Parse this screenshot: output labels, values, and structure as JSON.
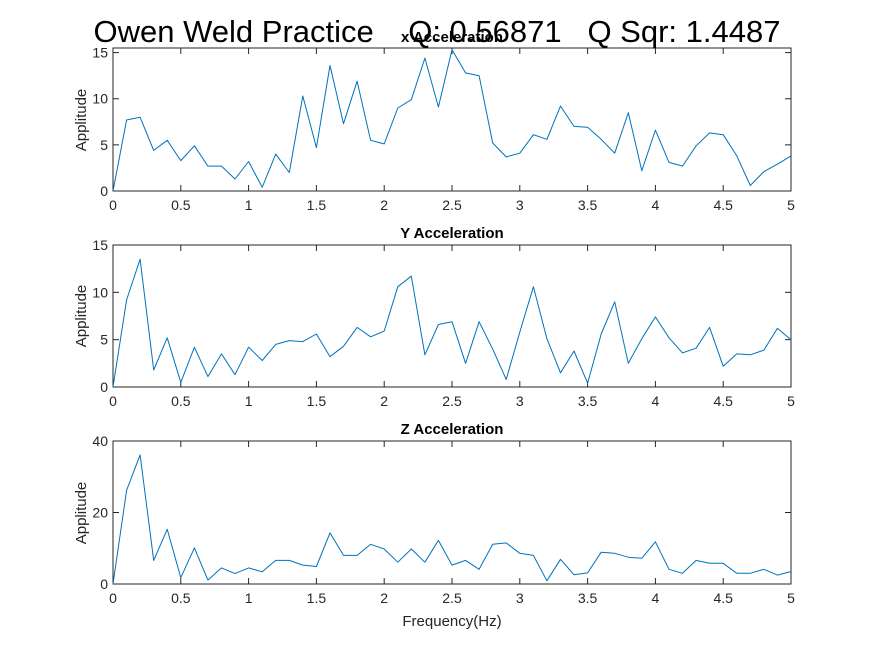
{
  "figure_title": "Owen Weld Practice    Q: 0.56871   Q Sqr: 1.4487",
  "colors": {
    "line": "#0072BD",
    "axis": "#262626",
    "background": "#ffffff"
  },
  "chart_data": [
    {
      "type": "line",
      "title": "x Acceleration",
      "xlabel": "",
      "ylabel": "Applitude",
      "xlim": [
        0,
        5
      ],
      "ylim": [
        0,
        15.5
      ],
      "xticks": [
        0,
        0.5,
        1,
        1.5,
        2,
        2.5,
        3,
        3.5,
        4,
        4.5,
        5
      ],
      "xtick_labels": [
        "0",
        "0.5",
        "1",
        "1.5",
        "2",
        "2.5",
        "3",
        "3.5",
        "4",
        "4.5",
        "5"
      ],
      "yticks": [
        0,
        5,
        10,
        15
      ],
      "ytick_labels": [
        "0",
        "5",
        "10",
        "15"
      ],
      "grid": false,
      "x": [
        0,
        0.1,
        0.2,
        0.3,
        0.4,
        0.5,
        0.6,
        0.7,
        0.8,
        0.9,
        1.0,
        1.1,
        1.2,
        1.3,
        1.4,
        1.5,
        1.6,
        1.7,
        1.8,
        1.9,
        2.0,
        2.1,
        2.2,
        2.3,
        2.4,
        2.5,
        2.6,
        2.7,
        2.8,
        2.9,
        3.0,
        3.1,
        3.2,
        3.3,
        3.4,
        3.5,
        3.6,
        3.7,
        3.8,
        3.9,
        4.0,
        4.1,
        4.2,
        4.3,
        4.4,
        4.5,
        4.6,
        4.7,
        4.8,
        4.9,
        5.0
      ],
      "values": [
        0,
        7.7,
        8.0,
        4.4,
        5.5,
        3.3,
        4.9,
        2.7,
        2.7,
        1.3,
        3.2,
        0.4,
        4.0,
        2.0,
        10.3,
        4.7,
        13.6,
        7.3,
        11.9,
        5.5,
        5.1,
        9.0,
        9.9,
        14.4,
        9.1,
        15.3,
        12.8,
        12.5,
        5.2,
        3.7,
        4.1,
        6.1,
        5.6,
        9.2,
        7.0,
        6.9,
        5.6,
        4.1,
        8.5,
        2.2,
        6.6,
        3.1,
        2.7,
        4.9,
        6.3,
        6.1,
        3.8,
        0.6,
        2.1,
        2.9,
        3.8
      ]
    },
    {
      "type": "line",
      "title": "Y Acceleration",
      "xlabel": "",
      "ylabel": "Applitude",
      "xlim": [
        0,
        5
      ],
      "ylim": [
        0,
        15
      ],
      "xticks": [
        0,
        0.5,
        1,
        1.5,
        2,
        2.5,
        3,
        3.5,
        4,
        4.5,
        5
      ],
      "xtick_labels": [
        "0",
        "0.5",
        "1",
        "1.5",
        "2",
        "2.5",
        "3",
        "3.5",
        "4",
        "4.5",
        "5"
      ],
      "yticks": [
        0,
        5,
        10,
        15
      ],
      "ytick_labels": [
        "0",
        "5",
        "10",
        "15"
      ],
      "grid": false,
      "x": [
        0,
        0.1,
        0.2,
        0.3,
        0.4,
        0.5,
        0.6,
        0.7,
        0.8,
        0.9,
        1.0,
        1.1,
        1.2,
        1.3,
        1.4,
        1.5,
        1.6,
        1.7,
        1.8,
        1.9,
        2.0,
        2.1,
        2.2,
        2.3,
        2.4,
        2.5,
        2.6,
        2.7,
        2.8,
        2.9,
        3.0,
        3.1,
        3.2,
        3.3,
        3.4,
        3.5,
        3.6,
        3.7,
        3.8,
        3.9,
        4.0,
        4.1,
        4.2,
        4.3,
        4.4,
        4.5,
        4.6,
        4.7,
        4.8,
        4.9,
        5.0
      ],
      "values": [
        0,
        9.2,
        13.5,
        1.8,
        5.2,
        0.5,
        4.2,
        1.1,
        3.5,
        1.3,
        4.2,
        2.8,
        4.5,
        4.9,
        4.8,
        5.6,
        3.2,
        4.3,
        6.3,
        5.3,
        5.9,
        10.6,
        11.7,
        3.4,
        6.6,
        6.9,
        2.5,
        6.9,
        4.0,
        0.8,
        5.8,
        10.6,
        5.1,
        1.5,
        3.8,
        0.4,
        5.6,
        9.0,
        2.5,
        5.1,
        7.4,
        5.2,
        3.6,
        4.1,
        6.3,
        2.2,
        3.5,
        3.4,
        3.9,
        6.2,
        5.0
      ]
    },
    {
      "type": "line",
      "title": "Z Acceleration",
      "xlabel": "Frequency(Hz)",
      "ylabel": "Applitude",
      "xlim": [
        0,
        5
      ],
      "ylim": [
        0,
        40
      ],
      "xticks": [
        0,
        0.5,
        1,
        1.5,
        2,
        2.5,
        3,
        3.5,
        4,
        4.5,
        5
      ],
      "xtick_labels": [
        "0",
        "0.5",
        "1",
        "1.5",
        "2",
        "2.5",
        "3",
        "3.5",
        "4",
        "4.5",
        "5"
      ],
      "yticks": [
        0,
        20,
        40
      ],
      "ytick_labels": [
        "0",
        "20",
        "40"
      ],
      "grid": false,
      "x": [
        0,
        0.1,
        0.2,
        0.3,
        0.4,
        0.5,
        0.6,
        0.7,
        0.8,
        0.9,
        1.0,
        1.1,
        1.2,
        1.3,
        1.4,
        1.5,
        1.6,
        1.7,
        1.8,
        1.9,
        2.0,
        2.1,
        2.2,
        2.3,
        2.4,
        2.5,
        2.6,
        2.7,
        2.8,
        2.9,
        3.0,
        3.1,
        3.2,
        3.3,
        3.4,
        3.5,
        3.6,
        3.7,
        3.8,
        3.9,
        4.0,
        4.1,
        4.2,
        4.3,
        4.4,
        4.5,
        4.6,
        4.7,
        4.8,
        4.9,
        5.0
      ],
      "values": [
        0,
        26.2,
        36.1,
        6.6,
        15.3,
        1.8,
        10.1,
        1.1,
        4.5,
        2.9,
        4.5,
        3.4,
        6.6,
        6.6,
        5.3,
        4.9,
        14.3,
        8.0,
        8.0,
        11.1,
        9.8,
        6.1,
        9.8,
        6.1,
        12.2,
        5.3,
        6.6,
        4.1,
        11.1,
        11.5,
        8.6,
        8.0,
        0.9,
        6.9,
        2.6,
        3.1,
        8.9,
        8.6,
        7.5,
        7.2,
        11.8,
        4.1,
        3.0,
        6.6,
        5.8,
        5.8,
        3.0,
        3.0,
        4.1,
        2.5,
        3.5
      ]
    }
  ]
}
